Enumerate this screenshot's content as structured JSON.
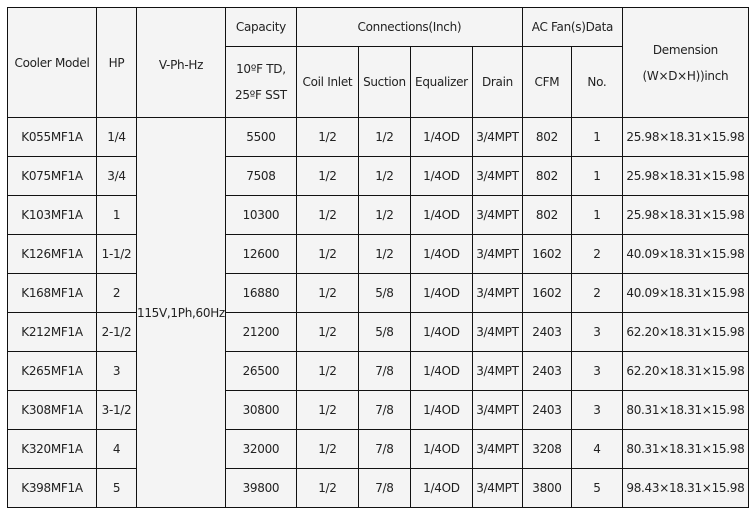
{
  "headers": {
    "model": "Cooler Model",
    "hp": "HP",
    "vph": "V-Ph-Hz",
    "capacity": "Capacity",
    "capacity_sub1": "10ºF TD,",
    "capacity_sub2": "25ºF SST",
    "connections": "Connections(Inch)",
    "coil_inlet": "Coil Inlet",
    "suction": "Suction",
    "equalizer": "Equalizer",
    "drain": "Drain",
    "fan": "AC Fan(s)Data",
    "cfm": "CFM",
    "no": "No.",
    "dimension": "Demension",
    "dimension_sub": "(W×D×H))inch"
  },
  "voltage": "115V,1Ph,60Hz",
  "rows": [
    {
      "model": "K055MF1A",
      "hp": "1/4",
      "capacity": "5500",
      "coil": "1/2",
      "suction": "1/2",
      "equalizer": "1/4OD",
      "drain": "3/4MPT",
      "cfm": "802",
      "no": "1",
      "dim": "25.98×18.31×15.98"
    },
    {
      "model": "K075MF1A",
      "hp": "3/4",
      "capacity": "7508",
      "coil": "1/2",
      "suction": "1/2",
      "equalizer": "1/4OD",
      "drain": "3/4MPT",
      "cfm": "802",
      "no": "1",
      "dim": "25.98×18.31×15.98"
    },
    {
      "model": "K103MF1A",
      "hp": "1",
      "capacity": "10300",
      "coil": "1/2",
      "suction": "1/2",
      "equalizer": "1/4OD",
      "drain": "3/4MPT",
      "cfm": "802",
      "no": "1",
      "dim": "25.98×18.31×15.98"
    },
    {
      "model": "K126MF1A",
      "hp": "1-1/2",
      "capacity": "12600",
      "coil": "1/2",
      "suction": "1/2",
      "equalizer": "1/4OD",
      "drain": "3/4MPT",
      "cfm": "1602",
      "no": "2",
      "dim": "40.09×18.31×15.98"
    },
    {
      "model": "K168MF1A",
      "hp": "2",
      "capacity": "16880",
      "coil": "1/2",
      "suction": "5/8",
      "equalizer": "1/4OD",
      "drain": "3/4MPT",
      "cfm": "1602",
      "no": "2",
      "dim": "40.09×18.31×15.98"
    },
    {
      "model": "K212MF1A",
      "hp": "2-1/2",
      "capacity": "21200",
      "coil": "1/2",
      "suction": "5/8",
      "equalizer": "1/4OD",
      "drain": "3/4MPT",
      "cfm": "2403",
      "no": "3",
      "dim": "62.20×18.31×15.98"
    },
    {
      "model": "K265MF1A",
      "hp": "3",
      "capacity": "26500",
      "coil": "1/2",
      "suction": "7/8",
      "equalizer": "1/4OD",
      "drain": "3/4MPT",
      "cfm": "2403",
      "no": "3",
      "dim": "62.20×18.31×15.98"
    },
    {
      "model": "K308MF1A",
      "hp": "3-1/2",
      "capacity": "30800",
      "coil": "1/2",
      "suction": "7/8",
      "equalizer": "1/4OD",
      "drain": "3/4MPT",
      "cfm": "2403",
      "no": "3",
      "dim": "80.31×18.31×15.98"
    },
    {
      "model": "K320MF1A",
      "hp": "4",
      "capacity": "32000",
      "coil": "1/2",
      "suction": "7/8",
      "equalizer": "1/4OD",
      "drain": "3/4MPT",
      "cfm": "3208",
      "no": "4",
      "dim": "80.31×18.31×15.98"
    },
    {
      "model": "K398MF1A",
      "hp": "5",
      "capacity": "39800",
      "coil": "1/2",
      "suction": "7/8",
      "equalizer": "1/4OD",
      "drain": "3/4MPT",
      "cfm": "3800",
      "no": "5",
      "dim": "98.43×18.31×15.98"
    }
  ]
}
